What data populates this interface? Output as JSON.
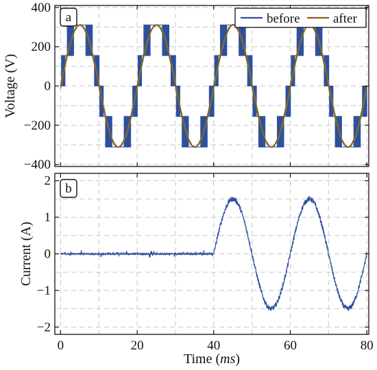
{
  "chart_data": [
    {
      "type": "line",
      "panel_label": "a",
      "xlabel": "",
      "ylabel": "Voltage (V)",
      "xlim": [
        -1.5,
        80.5
      ],
      "ylim": [
        -410,
        410
      ],
      "x_ticks": [
        0,
        20,
        40,
        60,
        80
      ],
      "y_ticks": [
        -400,
        -200,
        0,
        200,
        400
      ],
      "y_tick_labels": [
        "−400",
        "−200",
        "0",
        "200",
        "400"
      ],
      "grid": true,
      "legend_position": "top-right",
      "series": [
        {
          "name": "before",
          "color": "#2e4f9e",
          "description_x_ms": [
            0,
            80
          ],
          "period_ms": 20,
          "switching_levels_v": [
            -311,
            -155,
            0,
            155,
            311
          ]
        },
        {
          "name": "after",
          "color": "#8c5a24",
          "amplitude_v": 311,
          "period_ms": 20,
          "x_range_ms": [
            0,
            80
          ]
        }
      ],
      "filtered_overlay_color": "#5a9a3c"
    },
    {
      "type": "line",
      "panel_label": "b",
      "xlabel": "Time (ms)",
      "xlabel_parts": [
        "Time (",
        "ms",
        ")"
      ],
      "ylabel": "Current (A)",
      "xlim": [
        -1.5,
        80.5
      ],
      "ylim": [
        -2.2,
        2.2
      ],
      "x_ticks": [
        0,
        20,
        40,
        60,
        80
      ],
      "x_tick_labels": [
        "0",
        "20",
        "40",
        "60",
        "80"
      ],
      "y_ticks": [
        -2,
        -1,
        0,
        1,
        2
      ],
      "y_tick_labels": [
        "−2",
        "−1",
        "0",
        "1",
        "2"
      ],
      "grid": true,
      "series": [
        {
          "name": "",
          "color": "#2e4f9e",
          "segments": [
            {
              "x_range_ms": [
                0,
                40
              ],
              "value_a": 0
            },
            {
              "x_range_ms": [
                40,
                80
              ],
              "amplitude_a": 1.5,
              "period_ms": 20,
              "peaks_at_ms": [
                45,
                65
              ],
              "troughs_at_ms": [
                55,
                75
              ]
            }
          ]
        }
      ]
    }
  ]
}
